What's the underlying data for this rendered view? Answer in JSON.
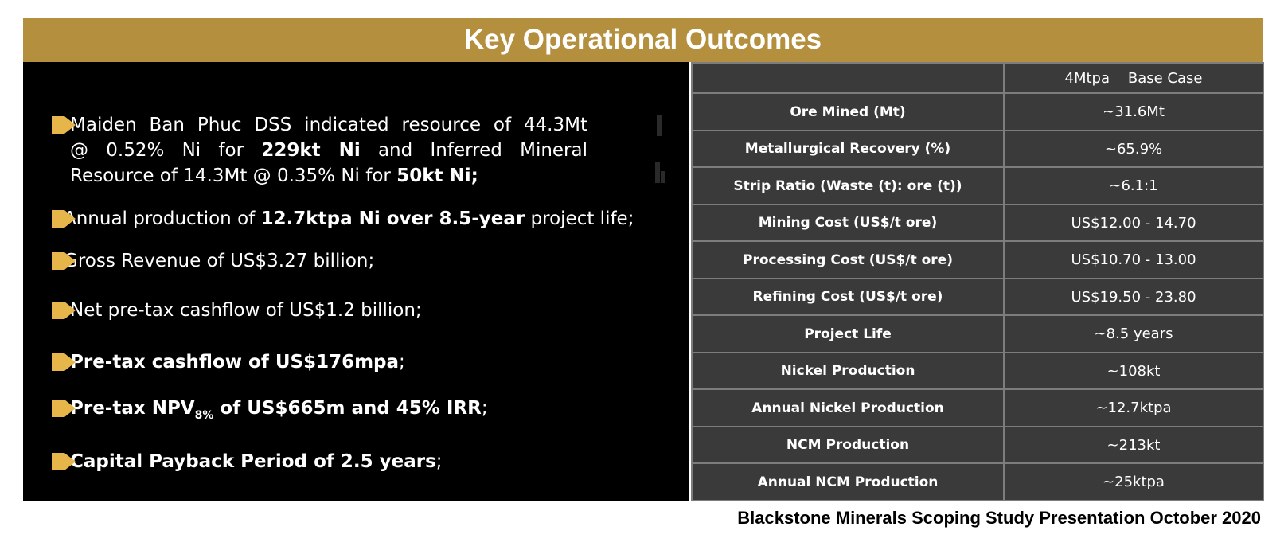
{
  "title": "Key Operational Outcomes",
  "bullets": [
    {
      "lines": [
        [
          {
            "text": "Maiden Ban Phuc DSS indicated resource of 44.3Mt"
          }
        ],
        [
          {
            "text": "@ 0.52% Ni for "
          },
          {
            "text": "229kt Ni",
            "bold": true
          },
          {
            "text": " and Inferred Mineral"
          }
        ],
        [
          {
            "text": "Resource of 14.3Mt @ 0.35% Ni for "
          },
          {
            "text": "50kt Ni;",
            "bold": true
          }
        ]
      ]
    },
    {
      "lines": [
        [
          {
            "text": "Annual production of "
          },
          {
            "text": "12.7ktpa Ni over 8.5-year",
            "bold": true
          },
          {
            "text": " project life;"
          }
        ]
      ]
    },
    {
      "lines": [
        [
          {
            "text": "Gross Revenue of US$3.27 billion;"
          }
        ]
      ]
    },
    {
      "lines": [
        [
          {
            "text": "Net pre-tax cashflow of US$1.2 billion;"
          }
        ]
      ]
    },
    {
      "lines": [
        [
          {
            "text": "Pre-tax cashflow of US$176mpa",
            "bold": true
          },
          {
            "text": ";"
          }
        ]
      ]
    },
    {
      "lines": [
        [
          {
            "text": "Pre-tax NPV",
            "bold": true
          },
          {
            "text": "8%",
            "bold": true,
            "sub": true
          },
          {
            "text": " of US$665m and 45% IRR",
            "bold": true
          },
          {
            "text": ";"
          }
        ]
      ]
    },
    {
      "lines": [
        [
          {
            "text": "Capital Payback Period of 2.5 years",
            "bold": true
          },
          {
            "text": ";"
          }
        ]
      ]
    }
  ],
  "table": {
    "header": [
      "",
      "4Mtpa    Base Case"
    ],
    "rows": [
      [
        "Ore Mined (Mt)",
        "~31.6Mt"
      ],
      [
        "Metallurgical  Recovery (%)",
        "~65.9%"
      ],
      [
        "Strip Ratio (Waste (t): ore (t))",
        "~6.1:1"
      ],
      [
        "Mining Cost (US$/t ore)",
        "US$12.00 - 14.70"
      ],
      [
        "Processing Cost (US$/t ore)",
        "US$10.70 - 13.00"
      ],
      [
        "Refining Cost (US$/t ore)",
        "US$19.50 - 23.80"
      ],
      [
        "Project Life",
        "~8.5 years"
      ],
      [
        "Nickel Production",
        "~108kt"
      ],
      [
        "Annual Nickel Production",
        "~12.7ktpa"
      ],
      [
        "NCM Production",
        "~213kt"
      ],
      [
        "Annual NCM Production",
        "~25ktpa"
      ]
    ]
  },
  "footer": "Blackstone Minerals Scoping Study Presentation October 2020",
  "colors": {
    "banner": "#b38f3e",
    "bullet_marker": "#e7b64a",
    "panel": "#000000",
    "table_bg": "#3a3a3a",
    "table_border": "#7d7d7d"
  }
}
